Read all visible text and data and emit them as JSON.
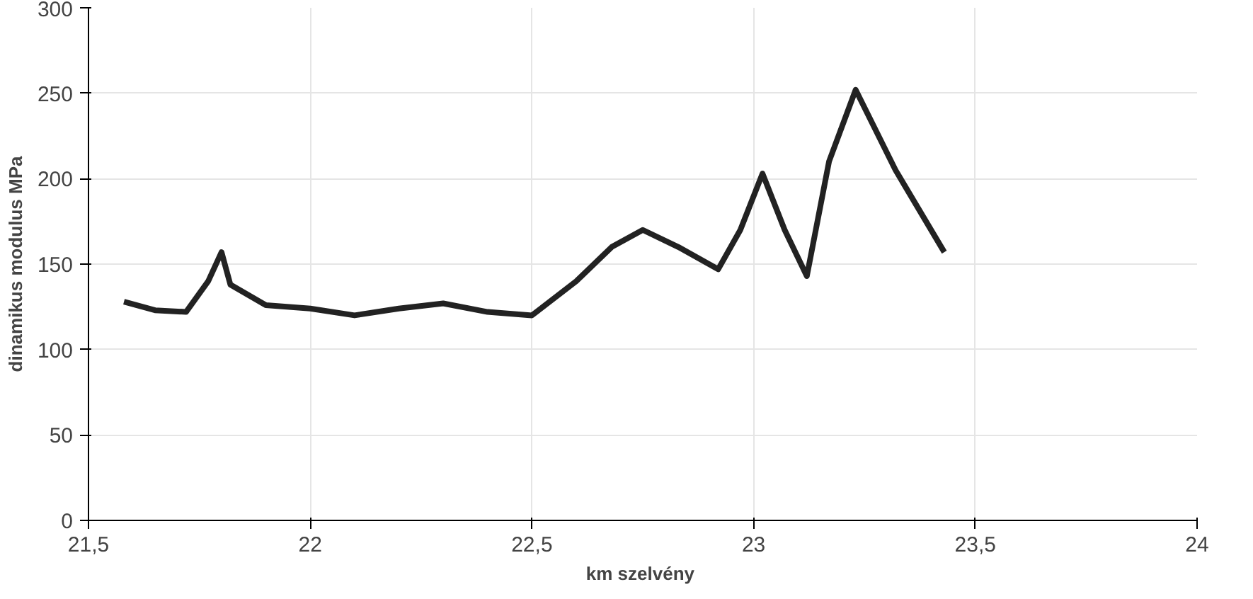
{
  "chart_data": {
    "type": "line",
    "xlabel": "km  szelvény",
    "ylabel": "dinamikus modulus MPa",
    "x": [
      21.58,
      21.65,
      21.72,
      21.77,
      21.8,
      21.82,
      21.9,
      22.0,
      22.1,
      22.2,
      22.3,
      22.4,
      22.5,
      22.6,
      22.68,
      22.75,
      22.83,
      22.92,
      22.97,
      23.02,
      23.07,
      23.12,
      23.17,
      23.23,
      23.32,
      23.43
    ],
    "series": [
      {
        "color": "#222222",
        "values": [
          128,
          123,
          122,
          140,
          157,
          138,
          126,
          124,
          120,
          124,
          127,
          122,
          120,
          140,
          160,
          170,
          160,
          147,
          170,
          203,
          170,
          143,
          210,
          252,
          205,
          157
        ]
      }
    ],
    "xlim": [
      21.5,
      24
    ],
    "ylim": [
      0,
      300
    ],
    "xticks": [
      {
        "value": 21.5,
        "label": "21,5"
      },
      22,
      {
        "value": 22.5,
        "label": "22,5"
      },
      23,
      {
        "value": 23.5,
        "label": "23,5"
      },
      24
    ],
    "yticks": [
      0,
      50,
      100,
      150,
      200,
      250,
      300
    ],
    "grid": true,
    "marker": "none",
    "line_style": "solid"
  }
}
